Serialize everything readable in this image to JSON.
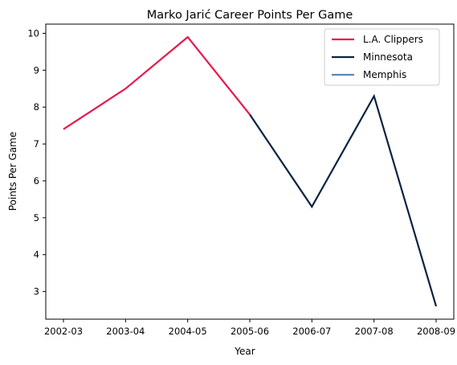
{
  "chart_data": {
    "type": "line",
    "title": "Marko Jarić Career Points Per Game",
    "xlabel": "Year",
    "ylabel": "Points Per Game",
    "categories": [
      "2002-03",
      "2003-04",
      "2004-05",
      "2005-06",
      "2006-07",
      "2007-08",
      "2008-09"
    ],
    "ylim": [
      2.25,
      10.25
    ],
    "yticks": [
      3,
      4,
      5,
      6,
      7,
      8,
      9,
      10
    ],
    "grid": false,
    "legend_position": "top-right",
    "series": [
      {
        "name": "L.A. Clippers",
        "color": "#e8194b",
        "values": [
          7.4,
          8.5,
          9.9,
          7.8,
          null,
          null,
          null
        ]
      },
      {
        "name": "Minnesota",
        "color": "#0c2340",
        "values": [
          null,
          null,
          null,
          7.8,
          5.3,
          8.3,
          2.6
        ]
      },
      {
        "name": "Memphis",
        "color": "#5d86b5",
        "values": [
          null,
          null,
          null,
          null,
          null,
          null,
          null
        ]
      }
    ]
  }
}
